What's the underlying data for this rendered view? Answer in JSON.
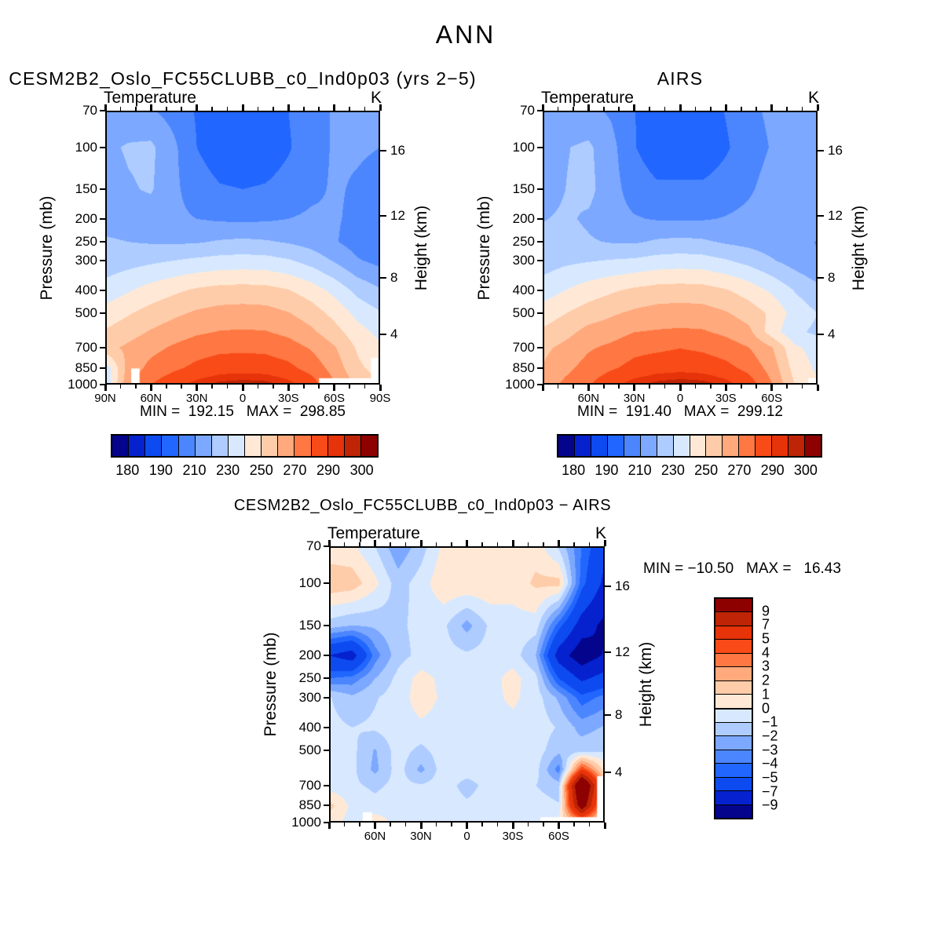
{
  "main_title": "ANN",
  "palette": [
    "#04048C",
    "#0522CE",
    "#0D4BF0",
    "#2166FF",
    "#4C86FF",
    "#7CA8FF",
    "#AECCFF",
    "#D8E9FF",
    "#FFE9D6",
    "#FFCCAA",
    "#FFA97C",
    "#FF7742",
    "#F94B18",
    "#E63309",
    "#BE2405",
    "#8E0101"
  ],
  "axes": {
    "pressure_label": "Pressure (mb)",
    "height_label": "Height (km)",
    "pressure_ticks": [
      "70",
      "100",
      "150",
      "200",
      "250",
      "300",
      "400",
      "500",
      "700",
      "850",
      "1000"
    ],
    "height_ticks": [
      {
        "label": "16",
        "p": 103
      },
      {
        "label": "12",
        "p": 194
      },
      {
        "label": "8",
        "p": 356
      },
      {
        "label": "4",
        "p": 616
      }
    ],
    "lat_minor_step": 10,
    "lat_major_step": 30
  },
  "chart_data": [
    {
      "type": "contour",
      "title": "CESM2B2_Oslo_FC55CLUBB_c0_Ind0p03 (yrs 2−5)",
      "variable": "Temperature",
      "units": "K",
      "minmax_text": "MIN =  192.15   MAX =  298.85",
      "min": 192.15,
      "max": 298.85,
      "lats": [
        90,
        75,
        60,
        45,
        30,
        15,
        0,
        -15,
        -30,
        -45,
        -60,
        -75,
        -90
      ],
      "pressure_levels": [
        70,
        100,
        150,
        200,
        250,
        300,
        400,
        500,
        600,
        700,
        850,
        1000
      ],
      "values": [
        [
          214,
          213,
          211,
          206,
          199,
          196,
          195,
          196,
          200,
          206,
          211,
          213,
          212
        ],
        [
          218,
          221,
          222,
          212,
          200,
          194,
          192.5,
          194,
          199,
          206,
          211,
          211,
          210
        ],
        [
          215,
          219,
          221,
          212,
          205,
          201,
          200,
          201,
          204,
          208,
          211,
          209,
          207
        ],
        [
          217,
          216,
          215,
          212,
          210,
          208.5,
          208,
          208.5,
          210,
          211.5,
          211,
          208,
          206
        ],
        [
          221,
          220,
          219,
          218.5,
          219,
          221,
          222,
          221,
          219,
          216,
          211,
          205.5,
          203.5
        ],
        [
          224,
          226,
          228,
          230,
          232,
          233.5,
          234,
          233.5,
          231,
          226,
          219,
          211,
          207
        ],
        [
          234,
          239,
          244,
          248,
          251.5,
          253.5,
          254,
          253.5,
          250.5,
          245,
          237,
          227,
          221
        ],
        [
          244,
          249,
          254,
          258,
          261.5,
          263.5,
          264,
          263.5,
          260.5,
          255,
          247,
          237,
          231
        ],
        [
          251,
          256,
          261,
          265,
          268.5,
          270.5,
          271,
          270.5,
          267.5,
          262,
          254,
          244,
          237
        ],
        [
          257,
          262,
          267,
          271.5,
          275.5,
          277.5,
          278,
          277.5,
          274.5,
          269,
          261,
          249,
          242
        ],
        [
          233,
          264,
          273,
          278,
          282.5,
          285.5,
          286,
          285.5,
          282.5,
          276,
          266,
          252,
          246
        ],
        [
          230,
          268,
          280,
          287,
          293,
          297,
          298.5,
          297.5,
          293,
          285,
          271,
          258,
          250
        ]
      ],
      "levels": [
        180,
        185,
        190,
        200,
        210,
        220,
        230,
        240,
        250,
        260,
        270,
        280,
        290,
        295,
        300
      ],
      "colorbar": {
        "orientation": "horizontal",
        "labels": [
          {
            "text": "180",
            "boundary": 1
          },
          {
            "text": "190",
            "boundary": 3
          },
          {
            "text": "210",
            "boundary": 5
          },
          {
            "text": "230",
            "boundary": 7
          },
          {
            "text": "250",
            "boundary": 9
          },
          {
            "text": "270",
            "boundary": 11
          },
          {
            "text": "290",
            "boundary": 13
          },
          {
            "text": "300",
            "boundary": 15
          }
        ]
      },
      "lat_ticks": [
        {
          "label": "90N",
          "lat": 90
        },
        {
          "label": "60N",
          "lat": 60
        },
        {
          "label": "30N",
          "lat": 30
        },
        {
          "label": "0",
          "lat": 0
        },
        {
          "label": "30S",
          "lat": -30
        },
        {
          "label": "60S",
          "lat": -60
        },
        {
          "label": "90S",
          "lat": -90
        }
      ],
      "masks": [
        {
          "lat": [
            -50,
            -90
          ],
          "p": [
            940,
            1000
          ]
        },
        {
          "lat": [
            -84,
            -90
          ],
          "p": [
            772,
            1000
          ]
        },
        {
          "lat": [
            67.5,
            73
          ],
          "p": [
            855,
            1000
          ]
        }
      ]
    },
    {
      "type": "contour",
      "title": "AIRS",
      "variable": "Temperature",
      "units": "K",
      "minmax_text": "MIN =  191.40   MAX =  299.12",
      "min": 191.4,
      "max": 299.12,
      "lats": [
        90,
        75,
        60,
        45,
        30,
        15,
        0,
        -15,
        -30,
        -45,
        -60,
        -75,
        -90
      ],
      "pressure_levels": [
        70,
        100,
        150,
        200,
        250,
        300,
        400,
        500,
        600,
        700,
        850,
        1000
      ],
      "values": [
        [
          213.5,
          212.7,
          212.5,
          208.5,
          200.2,
          195.5,
          194.2,
          195.5,
          200.5,
          207.5,
          212,
          216,
          218
        ],
        [
          216.2,
          219.5,
          221.8,
          213.2,
          200.6,
          193.4,
          191.7,
          193.4,
          198.8,
          205.2,
          210.7,
          214.5,
          217
        ],
        [
          215.5,
          220,
          223,
          213.5,
          205.8,
          201.9,
          202.3,
          201.9,
          204.5,
          208.6,
          214,
          216.5,
          216.5
        ],
        [
          219.5,
          221.5,
          218.5,
          213.5,
          210.8,
          209.2,
          208.8,
          209.2,
          210.6,
          212.7,
          216,
          218.3,
          214.5
        ],
        [
          222.5,
          223.5,
          221,
          219.3,
          218.7,
          221.4,
          222.6,
          221.5,
          218.6,
          216.8,
          214.5,
          213,
          209.5
        ],
        [
          225,
          227.8,
          229.2,
          230.6,
          231.6,
          233.8,
          234.5,
          233.9,
          230.8,
          226.6,
          221,
          215.5,
          210.5
        ],
        [
          234.8,
          240,
          244.8,
          248.5,
          251.8,
          253.9,
          254.5,
          253.9,
          250.8,
          245.5,
          238.2,
          229.5,
          223
        ],
        [
          244.7,
          249.8,
          254.9,
          258.6,
          261.9,
          264,
          264.6,
          264,
          260.9,
          255.5,
          248,
          236,
          230
        ],
        [
          251.5,
          256.7,
          263.3,
          265.5,
          269.9,
          270.9,
          271.5,
          271,
          267.8,
          262.6,
          245,
          232,
          228
        ],
        [
          257.6,
          262.9,
          268.8,
          272.3,
          277,
          278.1,
          279.8,
          278.2,
          275,
          270.2,
          261,
          242,
          236
        ],
        [
          260.5,
          267.3,
          273.8,
          278.6,
          283.2,
          286,
          286.9,
          286.1,
          282.9,
          276.8,
          266,
          246,
          238
        ],
        [
          264.5,
          272.5,
          279.2,
          287.5,
          293.8,
          297.3,
          299,
          297.8,
          293.3,
          285.5,
          270.5,
          250,
          242
        ]
      ],
      "levels": [
        180,
        185,
        190,
        200,
        210,
        220,
        230,
        240,
        250,
        260,
        270,
        280,
        290,
        295,
        300
      ],
      "colorbar": {
        "orientation": "horizontal",
        "labels": [
          {
            "text": "180",
            "boundary": 1
          },
          {
            "text": "190",
            "boundary": 3
          },
          {
            "text": "210",
            "boundary": 5
          },
          {
            "text": "230",
            "boundary": 7
          },
          {
            "text": "250",
            "boundary": 9
          },
          {
            "text": "270",
            "boundary": 11
          },
          {
            "text": "290",
            "boundary": 13
          },
          {
            "text": "300",
            "boundary": 15
          }
        ]
      },
      "lat_ticks": [
        {
          "label": "60N",
          "lat": 60
        },
        {
          "label": "30N",
          "lat": 30
        },
        {
          "label": "0",
          "lat": 0
        },
        {
          "label": "30S",
          "lat": -30
        },
        {
          "label": "60S",
          "lat": -60
        }
      ],
      "masks": [
        {
          "lat": [
            -84,
            -90
          ],
          "p": [
            940,
            1000
          ]
        }
      ]
    },
    {
      "type": "contour",
      "title": "CESM2B2_Oslo_FC55CLUBB_c0_Ind0p03 − AIRS",
      "variable": "Temperature",
      "units": "K",
      "minmax_text": "MIN = −10.50   MAX =   16.43",
      "min": -10.5,
      "max": 16.43,
      "lats": [
        90,
        75,
        60,
        45,
        30,
        15,
        0,
        -15,
        -30,
        -45,
        -60,
        -75,
        -90
      ],
      "pressure_levels": [
        70,
        100,
        150,
        200,
        250,
        300,
        400,
        500,
        600,
        700,
        850,
        1000
      ],
      "values": [
        [
          0.3,
          0.2,
          -1.0,
          -2.8,
          -1.5,
          0.3,
          0.6,
          0.5,
          0.3,
          0.6,
          -1.2,
          -4.0,
          -6.5
        ],
        [
          1.8,
          1.6,
          0.3,
          -1.5,
          -0.5,
          0.8,
          0.9,
          0.8,
          0.4,
          1.2,
          1.4,
          -4.5,
          -7.5
        ],
        [
          -1.5,
          -2.0,
          -1.8,
          -1.2,
          -0.7,
          -0.8,
          -2.4,
          -0.8,
          -0.4,
          -0.5,
          -4.5,
          -8.0,
          -9.5
        ],
        [
          -7.0,
          -8.0,
          -3.5,
          -1.4,
          -0.7,
          -0.6,
          -0.8,
          -0.6,
          -0.5,
          -2.0,
          -8.0,
          -10.3,
          -8.8
        ],
        [
          -4.0,
          -3.6,
          -2.0,
          -0.7,
          0.4,
          -0.3,
          -0.6,
          -0.4,
          0.4,
          -0.7,
          -5.0,
          -7.4,
          -6.2
        ],
        [
          -0.9,
          -1.8,
          -1.1,
          -0.5,
          0.5,
          -0.2,
          -0.5,
          -0.3,
          0.2,
          -0.5,
          -2.2,
          -4.6,
          -3.6
        ],
        [
          -0.7,
          -1.0,
          -0.8,
          -0.4,
          -0.2,
          -0.4,
          -0.6,
          -0.4,
          -0.3,
          -0.4,
          -1.1,
          -2.4,
          -1.9
        ],
        [
          -0.6,
          -0.7,
          -2.1,
          -0.5,
          -1.3,
          -0.4,
          -0.6,
          -0.5,
          -0.3,
          -0.5,
          -1.7,
          -1.4,
          -1.1
        ],
        [
          -0.5,
          -0.7,
          -2.3,
          -0.5,
          -2.3,
          -0.4,
          -0.5,
          -0.5,
          -0.3,
          -0.6,
          -3.5,
          5.0,
          0.5
        ],
        [
          -0.5,
          -0.8,
          -1.2,
          -0.7,
          -0.9,
          -0.5,
          -1.4,
          -0.6,
          -0.4,
          -1.0,
          -1.5,
          13.5,
          2.0
        ],
        [
          1.4,
          -0.3,
          -0.7,
          -0.5,
          -0.6,
          -0.4,
          -0.8,
          -0.5,
          -0.3,
          -0.6,
          -0.9,
          11.0,
          1.0
        ],
        [
          0.4,
          -0.4,
          0.7,
          -0.4,
          -0.6,
          -0.2,
          -0.9,
          -0.4,
          -0.2,
          -0.4,
          0.5,
          2.0,
          0.5
        ]
      ],
      "levels": [
        -9,
        -7,
        -5,
        -4,
        -3,
        -2,
        -1,
        0,
        1,
        2,
        3,
        4,
        5,
        7,
        9
      ],
      "colorbar": {
        "orientation": "vertical",
        "labels_top_to_bottom": [
          "9",
          "7",
          "5",
          "4",
          "3",
          "2",
          "1",
          "0",
          "−1",
          "−2",
          "−3",
          "−4",
          "−5",
          "−7",
          "−9"
        ]
      },
      "lat_ticks": [
        {
          "label": "60N",
          "lat": 60
        },
        {
          "label": "30N",
          "lat": 30
        },
        {
          "label": "0",
          "lat": 0
        },
        {
          "label": "30S",
          "lat": -30
        },
        {
          "label": "60S",
          "lat": -60
        }
      ],
      "masks": [
        {
          "lat": [
            -48,
            -90
          ],
          "p": [
            950,
            1000
          ]
        },
        {
          "lat": [
            -85,
            -90
          ],
          "p": [
            640,
            1000
          ]
        },
        {
          "lat": [
            62,
            68
          ],
          "p": [
            905,
            1000
          ]
        }
      ]
    }
  ]
}
